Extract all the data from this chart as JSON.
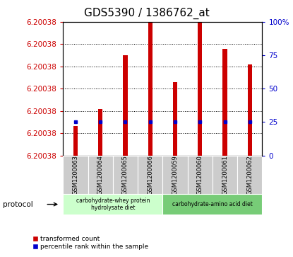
{
  "title": "GDS5390 / 1386762_at",
  "samples": [
    "GSM1200063",
    "GSM1200064",
    "GSM1200065",
    "GSM1200066",
    "GSM1200059",
    "GSM1200060",
    "GSM1200061",
    "GSM1200062"
  ],
  "bar_heights_pct": [
    22,
    35,
    75,
    100,
    55,
    100,
    80,
    68
  ],
  "percentile_ranks": [
    25,
    25,
    25,
    25,
    25,
    25,
    25,
    25
  ],
  "y_min": 6.200378,
  "y_max": 6.20039,
  "y_ticks_vals": [
    6.200378,
    6.20038,
    6.200382,
    6.200384,
    6.200386,
    6.200388,
    6.20039
  ],
  "y_tick_labels": [
    "6.20038",
    "6.20038",
    "6.20038",
    "6.20038",
    "6.20038",
    "6.20038",
    "6.20038"
  ],
  "right_y_ticks": [
    0,
    25,
    50,
    75,
    100
  ],
  "right_y_labels": [
    "0",
    "25",
    "50",
    "75",
    "100%"
  ],
  "bar_color": "#cc0000",
  "percentile_color": "#0000cc",
  "group1_label": "carbohydrate-whey protein\nhydrolysate diet",
  "group2_label": "carbohydrate-amino acid diet",
  "group1_indices": [
    0,
    1,
    2,
    3
  ],
  "group2_indices": [
    4,
    5,
    6,
    7
  ],
  "group1_bg": "#ccffcc",
  "group2_bg": "#77cc77",
  "sample_bg": "#cccccc",
  "protocol_label": "protocol",
  "legend_red_label": "transformed count",
  "legend_blue_label": "percentile rank within the sample",
  "title_fontsize": 11,
  "tick_fontsize": 7.5,
  "bar_width": 0.18
}
